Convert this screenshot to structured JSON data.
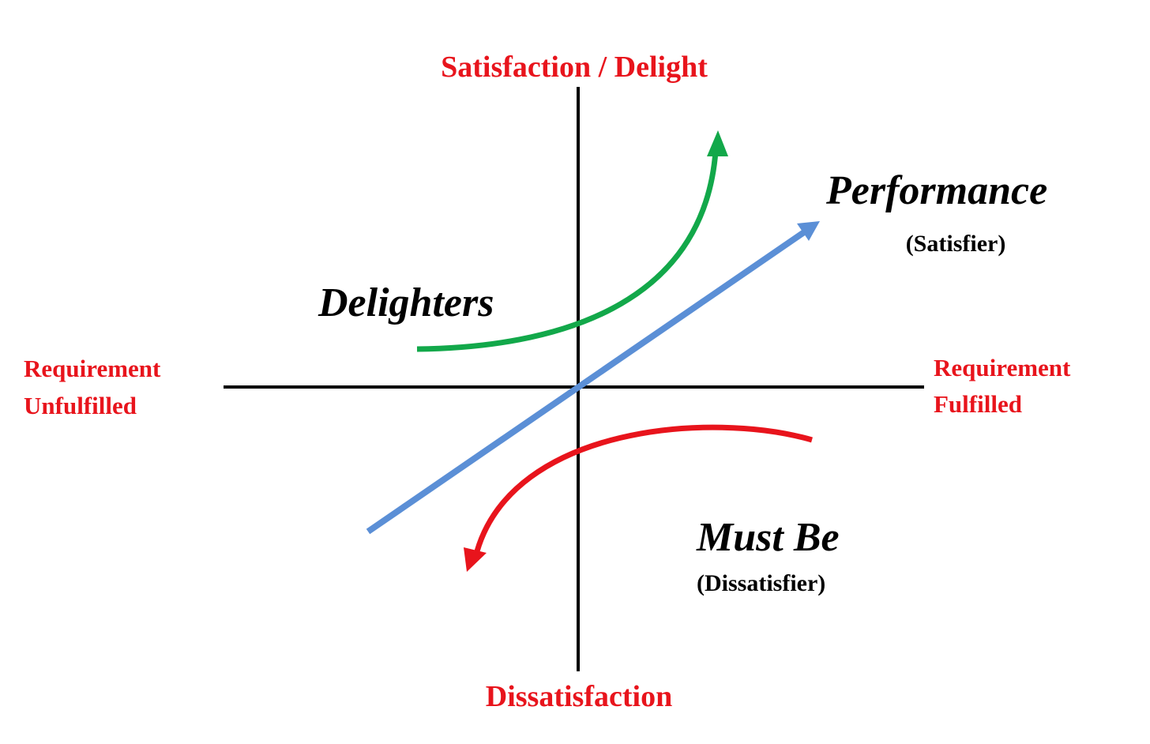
{
  "axes": {
    "top": "Satisfaction / Delight",
    "bottom": "Dissatisfaction",
    "left": [
      "Requirement",
      "Unfulfilled"
    ],
    "right": [
      "Requirement",
      "Fulfilled"
    ]
  },
  "curves": [
    {
      "label": "Delighters"
    },
    {
      "label": "Performance",
      "sublabel": "(Satisfier)"
    },
    {
      "label": "Must Be",
      "sublabel": "(Dissatisfier)"
    }
  ]
}
